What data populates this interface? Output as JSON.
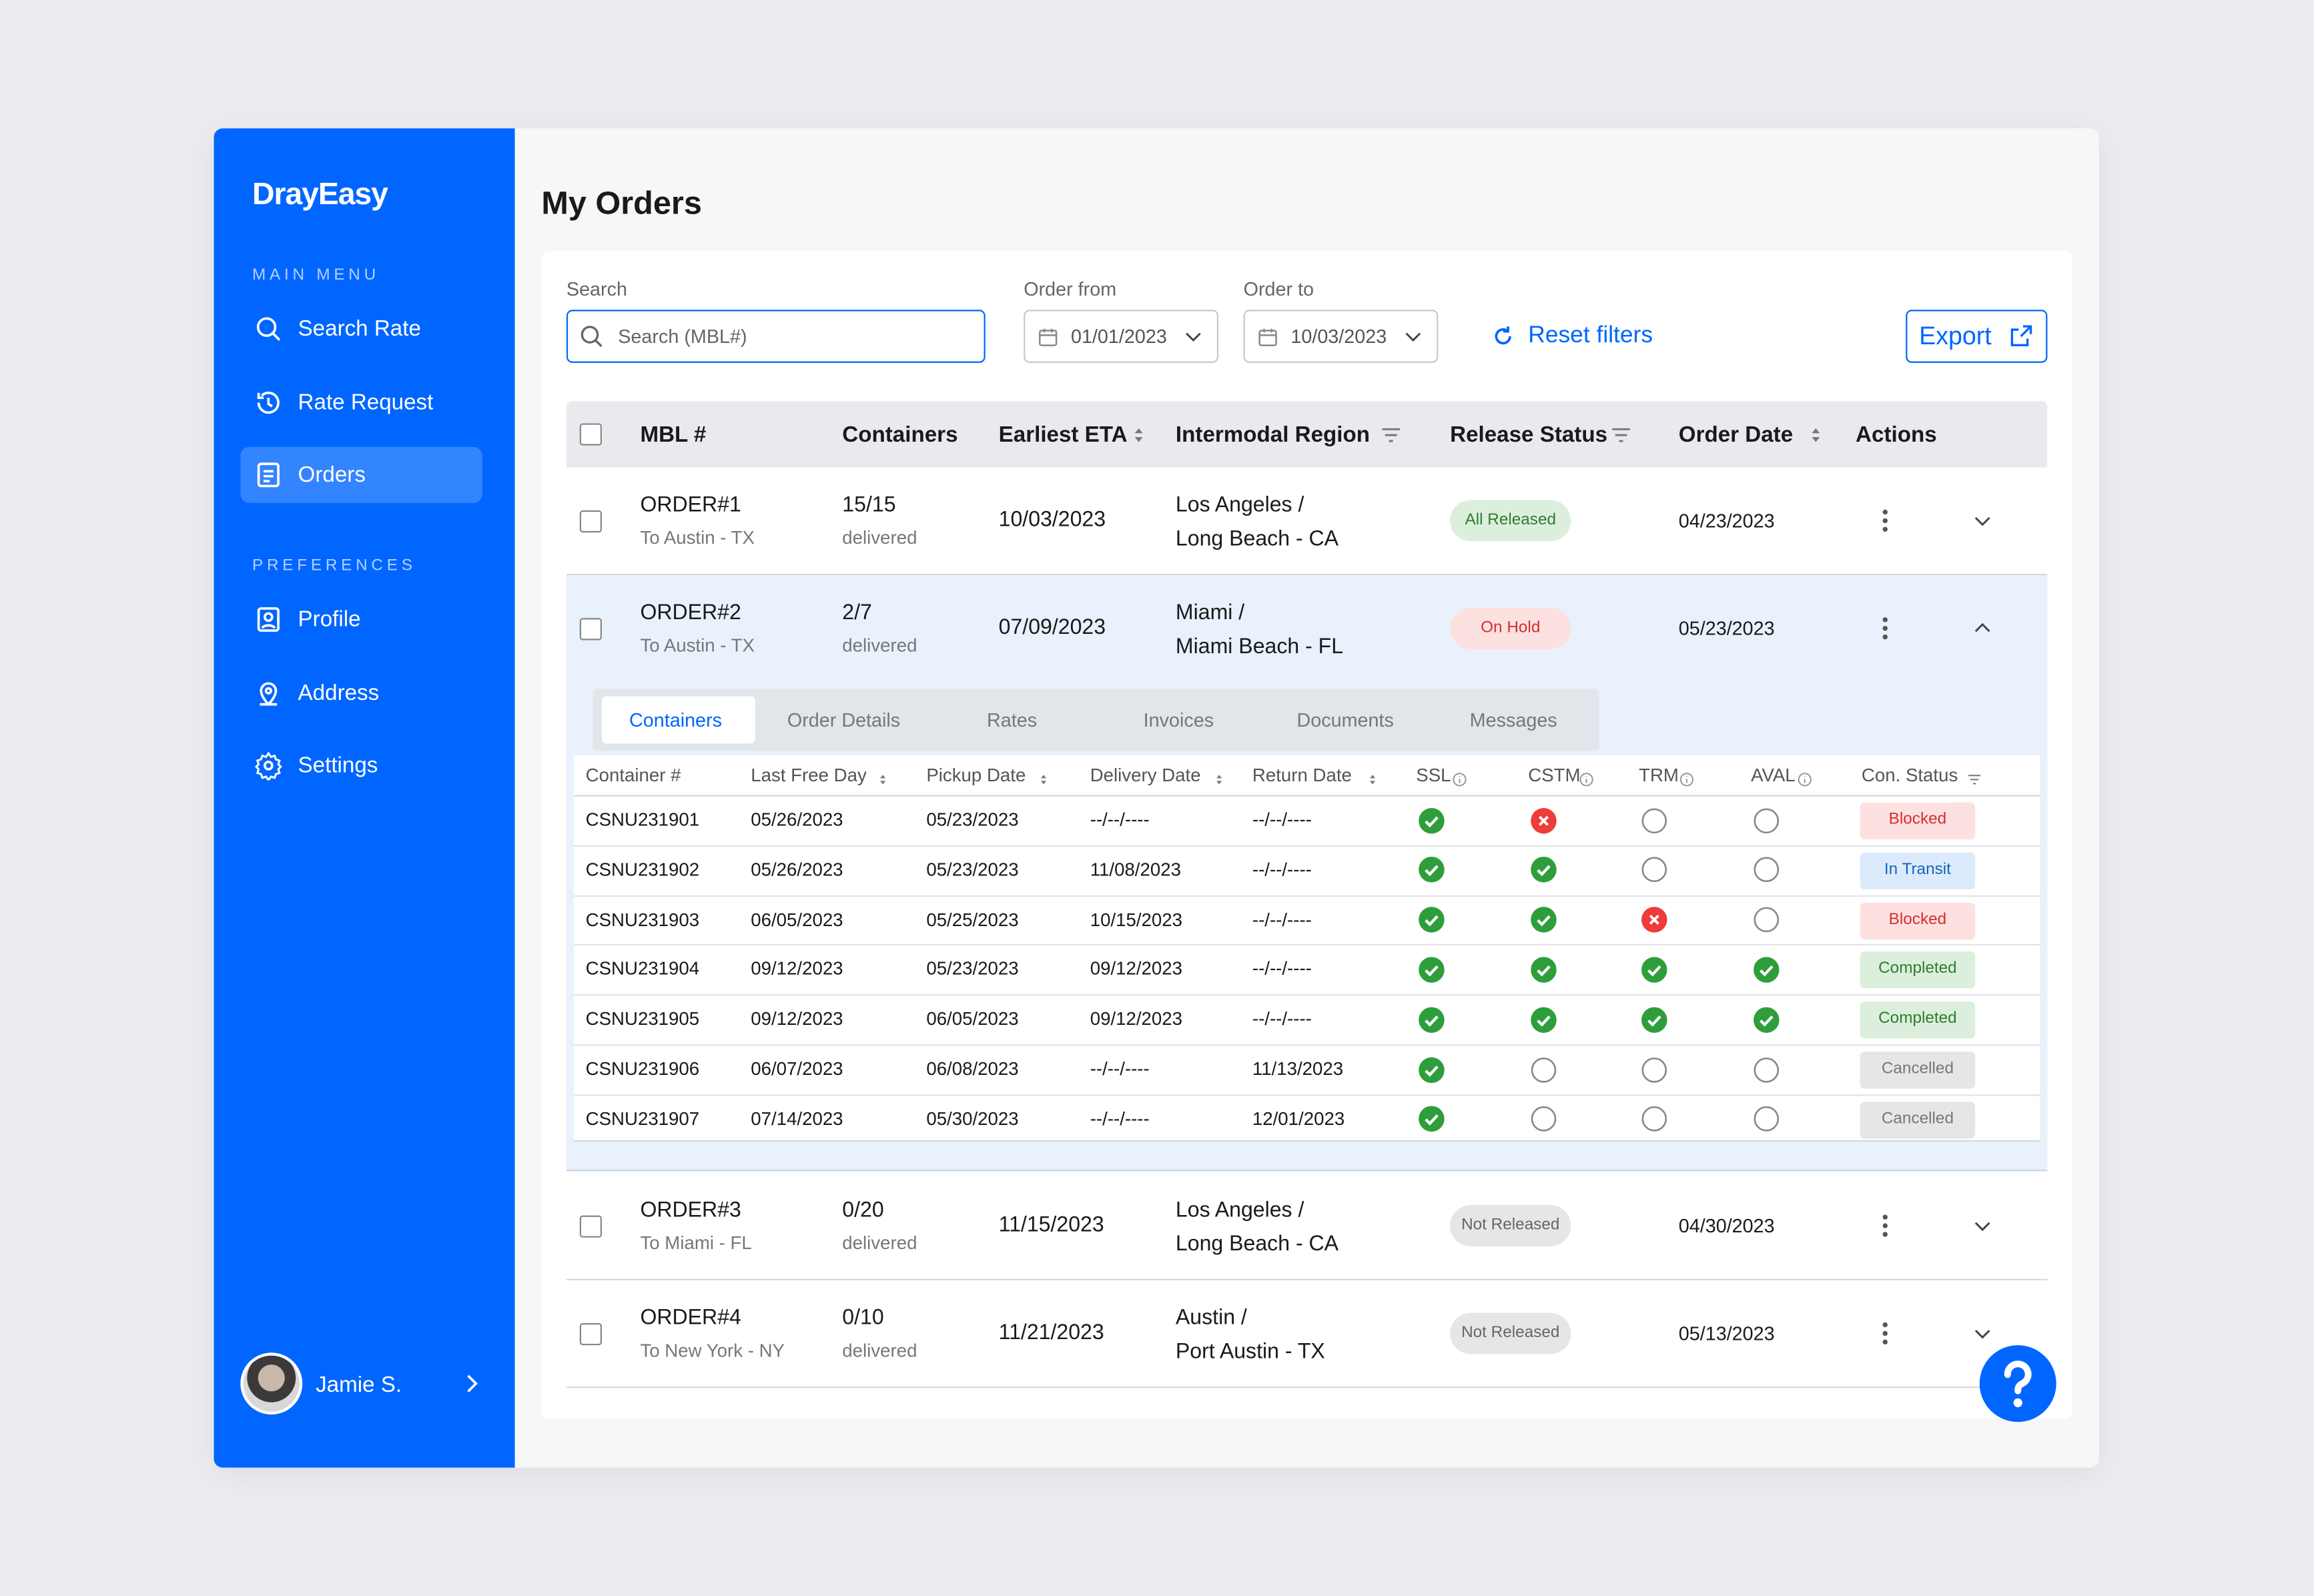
{
  "brand": "DrayEasy",
  "sidebar": {
    "sections": [
      {
        "title": "MAIN MENU",
        "items": [
          {
            "label": "Search Rate"
          },
          {
            "label": "Rate Request"
          },
          {
            "label": "Orders",
            "active": true
          }
        ]
      },
      {
        "title": "PREFERENCES",
        "items": [
          {
            "label": "Profile"
          },
          {
            "label": "Address"
          },
          {
            "label": "Settings"
          }
        ]
      }
    ],
    "user": "Jamie S."
  },
  "header": {
    "title": "My Orders"
  },
  "filters": {
    "search": {
      "label": "Search",
      "placeholder": "Search (MBL#)"
    },
    "order_from": {
      "label": "Order from",
      "value": "01/01/2023"
    },
    "order_to": {
      "label": "Order to",
      "value": "10/03/2023"
    },
    "reset": "Reset filters",
    "export": "Export"
  },
  "table": {
    "columns": [
      "MBL #",
      "Containers",
      "Earliest ETA",
      "Intermodal Region",
      "Release Status",
      "Order Date",
      "Actions"
    ],
    "rows": [
      {
        "mbl": "ORDER#1",
        "destination": "To Austin - TX",
        "containers": "15/15",
        "containers_note": "delivered",
        "eta": "10/03/2023",
        "region": [
          "Los Angeles /",
          "Long Beach - CA"
        ],
        "release_status": {
          "label": "All Released",
          "color": "#2e7d32",
          "background": "#dcefdc"
        },
        "order_date": "04/23/2023",
        "expanded": false
      },
      {
        "mbl": "ORDER#2",
        "destination": "To Austin - TX",
        "containers": "2/7",
        "containers_note": "delivered",
        "eta": "07/09/2023",
        "region": [
          "Miami /",
          "Miami Beach - FL"
        ],
        "release_status": {
          "label": "On Hold",
          "color": "#d32f2f",
          "background": "#fde0e0"
        },
        "order_date": "05/23/2023",
        "expanded": true
      },
      {
        "mbl": "ORDER#3",
        "destination": "To Miami - FL",
        "containers": "0/20",
        "containers_note": "delivered",
        "eta": "11/15/2023",
        "region": [
          "Los Angeles /",
          "Long Beach - CA"
        ],
        "release_status": {
          "label": "Not Released",
          "color": "#666666",
          "background": "#e6e6e8"
        },
        "order_date": "04/30/2023",
        "expanded": false
      },
      {
        "mbl": "ORDER#4",
        "destination": "To New York - NY",
        "containers": "0/10",
        "containers_note": "delivered",
        "eta": "11/21/2023",
        "region": [
          "Austin /",
          "Port Austin - TX"
        ],
        "release_status": {
          "label": "Not Released",
          "color": "#666666",
          "background": "#e6e6e8"
        },
        "order_date": "05/13/2023",
        "expanded": false
      }
    ]
  },
  "details": {
    "tabs": [
      "Containers",
      "Order Details",
      "Rates",
      "Invoices",
      "Documents",
      "Messages"
    ],
    "active_tab": 0,
    "columns": [
      "Container #",
      "Last Free Day",
      "Pickup Date",
      "Delivery Date",
      "Return Date",
      "SSL",
      "CSTM",
      "TRM",
      "AVAL",
      "Con. Status"
    ],
    "rows": [
      {
        "container": "CSNU231901",
        "last_free_day": "05/26/2023",
        "pickup": "05/23/2023",
        "delivery": "--/--/----",
        "return": "--/--/----",
        "checks": [
          "ok",
          "fail",
          "none",
          "none"
        ],
        "status": {
          "label": "Blocked",
          "color": "#d32f2f",
          "background": "#fde0e0"
        }
      },
      {
        "container": "CSNU231902",
        "last_free_day": "05/26/2023",
        "pickup": "05/23/2023",
        "delivery": "11/08/2023",
        "return": "--/--/----",
        "checks": [
          "ok",
          "ok",
          "none",
          "none"
        ],
        "status": {
          "label": "In Transit",
          "color": "#1565c0",
          "background": "#dcebfb"
        }
      },
      {
        "container": "CSNU231903",
        "last_free_day": "06/05/2023",
        "pickup": "05/25/2023",
        "delivery": "10/15/2023",
        "return": "--/--/----",
        "checks": [
          "ok",
          "ok",
          "fail",
          "none"
        ],
        "status": {
          "label": "Blocked",
          "color": "#d32f2f",
          "background": "#fde0e0"
        }
      },
      {
        "container": "CSNU231904",
        "last_free_day": "09/12/2023",
        "pickup": "05/23/2023",
        "delivery": "09/12/2023",
        "return": "--/--/----",
        "checks": [
          "ok",
          "ok",
          "ok",
          "ok"
        ],
        "status": {
          "label": "Completed",
          "color": "#2e7d32",
          "background": "#dcefdc"
        }
      },
      {
        "container": "CSNU231905",
        "last_free_day": "09/12/2023",
        "pickup": "06/05/2023",
        "delivery": "09/12/2023",
        "return": "--/--/----",
        "checks": [
          "ok",
          "ok",
          "ok",
          "ok"
        ],
        "status": {
          "label": "Completed",
          "color": "#2e7d32",
          "background": "#dcefdc"
        }
      },
      {
        "container": "CSNU231906",
        "last_free_day": "06/07/2023",
        "pickup": "06/08/2023",
        "delivery": "--/--/----",
        "return": "11/13/2023",
        "checks": [
          "ok",
          "none",
          "none",
          "none"
        ],
        "status": {
          "label": "Cancelled",
          "color": "#777777",
          "background": "#e6e6e8"
        }
      },
      {
        "container": "CSNU231907",
        "last_free_day": "07/14/2023",
        "pickup": "05/30/2023",
        "delivery": "--/--/----",
        "return": "12/01/2023",
        "checks": [
          "ok",
          "none",
          "none",
          "none"
        ],
        "status": {
          "label": "Cancelled",
          "color": "#777777",
          "background": "#e6e6e8"
        }
      }
    ]
  }
}
